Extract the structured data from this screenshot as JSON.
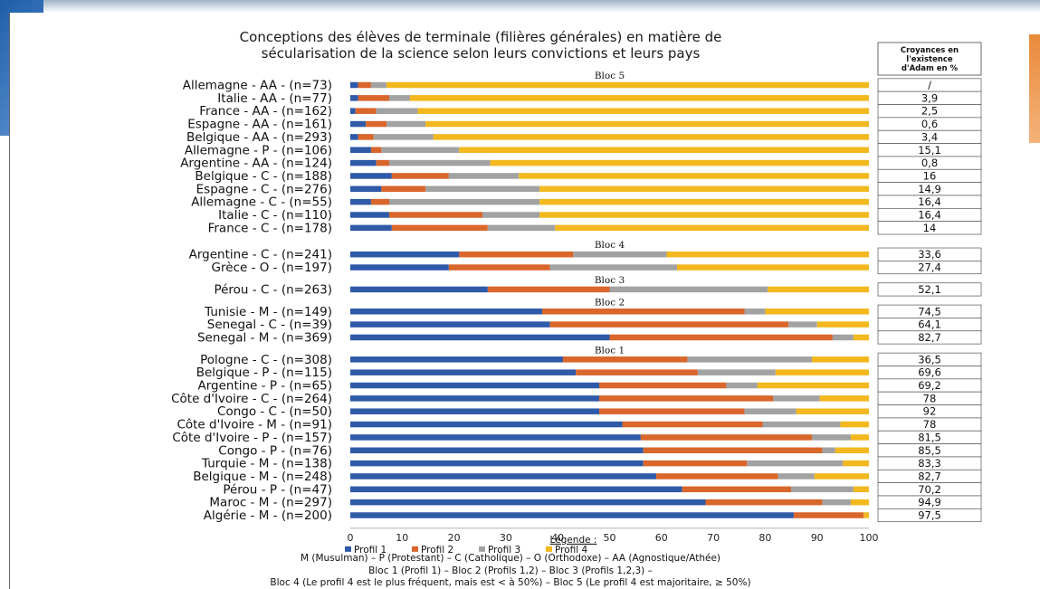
{
  "chart_data": {
    "type": "bar",
    "stacked": true,
    "orientation": "horizontal",
    "title": [
      "Conceptions des élèves de terminale (filières générales) en matière de",
      "sécularisation de la science selon leurs convictions et leurs pays"
    ],
    "xlim": [
      0,
      100
    ],
    "xticks": [
      0,
      10,
      20,
      30,
      40,
      50,
      60,
      70,
      80,
      90,
      100
    ],
    "series": [
      {
        "name": "Profil 1",
        "color": "#2e5aa8"
      },
      {
        "name": "Profil 2",
        "color": "#d9662b"
      },
      {
        "name": "Profil 3",
        "color": "#a2a2a2"
      },
      {
        "name": "Profil 4",
        "color": "#f2b81e"
      }
    ],
    "adam_header": [
      "Croyances en",
      "l'existence",
      "d'Adam en %"
    ],
    "blocs": [
      {
        "label": "Bloc 5",
        "rows": [
          {
            "label": "Allemagne - AA - (n=73)",
            "values": [
              1.5,
              2.5,
              3,
              93
            ],
            "adam": "/"
          },
          {
            "label": "Italie - AA - (n=77)",
            "values": [
              1.5,
              6,
              4,
              88.5
            ],
            "adam": "3,9"
          },
          {
            "label": "France - AA - (n=162)",
            "values": [
              1,
              4,
              8,
              87
            ],
            "adam": "2,5"
          },
          {
            "label": "Espagne - AA - (n=161)",
            "values": [
              3,
              4,
              7.5,
              85.5
            ],
            "adam": "0,6"
          },
          {
            "label": "Belgique - AA - (n=293)",
            "values": [
              1.5,
              3,
              11.5,
              84
            ],
            "adam": "3,4"
          },
          {
            "label": "Allemagne - P - (n=106)",
            "values": [
              4,
              2,
              15,
              79
            ],
            "adam": "15,1"
          },
          {
            "label": "Argentine - AA - (n=124)",
            "values": [
              5,
              2.5,
              19.5,
              73
            ],
            "adam": "0,8"
          },
          {
            "label": "Belgique - C - (n=188)",
            "values": [
              8,
              11,
              13.5,
              67.5
            ],
            "adam": "16"
          },
          {
            "label": "Espagne - C - (n=276)",
            "values": [
              6,
              8.5,
              22,
              63.5
            ],
            "adam": "14,9"
          },
          {
            "label": "Allemagne - C - (n=55)",
            "values": [
              4,
              3.5,
              29,
              63.5
            ],
            "adam": "16,4"
          },
          {
            "label": "Italie - C - (n=110)",
            "values": [
              7.5,
              18,
              11,
              63.5
            ],
            "adam": "16,4"
          },
          {
            "label": "France - C - (n=178)",
            "values": [
              8,
              18.5,
              13,
              60.5
            ],
            "adam": "14"
          }
        ]
      },
      {
        "label": "Bloc 4",
        "rows": [
          {
            "label": "Argentine - C - (n=241)",
            "values": [
              21,
              22,
              18,
              39
            ],
            "adam": "33,6"
          },
          {
            "label": "Grèce - O - (n=197)",
            "values": [
              19,
              19.5,
              24.5,
              37
            ],
            "adam": "27,4"
          }
        ]
      },
      {
        "label": "Bloc 3",
        "rows": [
          {
            "label": "Pérou - C - (n=263)",
            "values": [
              26.5,
              23.5,
              30.5,
              19.5
            ],
            "adam": "52,1"
          }
        ]
      },
      {
        "label": "Bloc 2",
        "rows": [
          {
            "label": "Tunisie - M - (n=149)",
            "values": [
              37,
              39,
              4,
              20
            ],
            "adam": "74,5"
          },
          {
            "label": "Senegal - C - (n=39)",
            "values": [
              38.5,
              46,
              5.5,
              10
            ],
            "adam": "64,1"
          },
          {
            "label": "Senegal - M - (n=369)",
            "values": [
              50,
              43,
              4,
              3
            ],
            "adam": "82,7"
          }
        ]
      },
      {
        "label": "Bloc 1",
        "rows": [
          {
            "label": "Pologne - C - (n=308)",
            "values": [
              41,
              24,
              24,
              11
            ],
            "adam": "36,5"
          },
          {
            "label": "Belgique - P - (n=115)",
            "values": [
              43.5,
              23.5,
              15,
              18
            ],
            "adam": "69,6"
          },
          {
            "label": "Argentine - P - (n=65)",
            "values": [
              48,
              24.5,
              6,
              21.5
            ],
            "adam": "69,2"
          },
          {
            "label": "Côte d'Ivoire - C - (n=264)",
            "values": [
              48,
              33.5,
              9,
              9.5
            ],
            "adam": "78"
          },
          {
            "label": "Congo - C - (n=50)",
            "values": [
              48,
              28,
              10,
              14
            ],
            "adam": "92"
          },
          {
            "label": "Côte d'Ivoire - M - (n=91)",
            "values": [
              52.5,
              27,
              15,
              5.5
            ],
            "adam": "78"
          },
          {
            "label": "Côte d'Ivoire - P - (n=157)",
            "values": [
              56,
              33,
              7.5,
              3.5
            ],
            "adam": "81,5"
          },
          {
            "label": "Congo - P - (n=76)",
            "values": [
              56.5,
              34.5,
              2.5,
              6.5
            ],
            "adam": "85,5"
          },
          {
            "label": "Turquie - M - (n=138)",
            "values": [
              56.5,
              20,
              18.5,
              5
            ],
            "adam": "83,3"
          },
          {
            "label": "Belgique - M - (n=248)",
            "values": [
              59,
              23.5,
              7,
              10.5
            ],
            "adam": "82,7"
          },
          {
            "label": "Pérou - P - (n=47)",
            "values": [
              64,
              21,
              12,
              3
            ],
            "adam": "70,2"
          },
          {
            "label": "Maroc - M - (n=297)",
            "values": [
              68.5,
              22.5,
              5.5,
              3.5
            ],
            "adam": "94,9"
          },
          {
            "label": "Algérie - M - (n=200)",
            "values": [
              85.5,
              13.5,
              0,
              1
            ],
            "adam": "97,5"
          }
        ]
      }
    ],
    "legend_title": "Légende :",
    "notes": [
      "M (Musulman) – P (Protestant) – C (Catholique) – O (Orthodoxe) – AA (Agnostique/Athée)",
      "Bloc 1 (Profil 1) – Bloc 2 (Profils 1,2) – Bloc 3 (Profils 1,2,3) –",
      "Bloc 4 (Le profil 4 est le plus fréquent, mais est < à 50%) – Bloc 5 (Le profil 4 est majoritaire, ≥ 50%)"
    ]
  }
}
